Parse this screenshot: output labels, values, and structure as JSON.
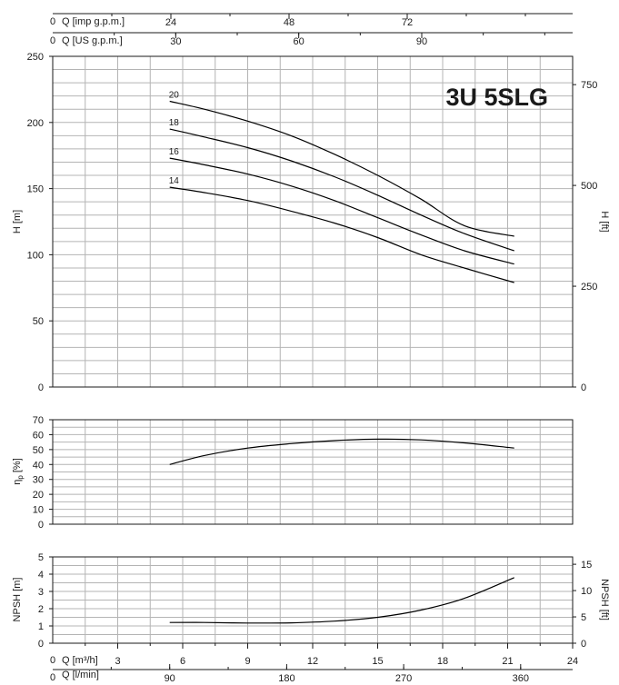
{
  "chart_data": [
    {
      "type": "line",
      "title": "3U 5SLG",
      "ylabel": "H [m]",
      "y2label": "H [ft]",
      "ylim": [
        0,
        250
      ],
      "yticks": [
        0,
        50,
        100,
        150,
        200,
        250
      ],
      "y2lim": [
        0,
        820.2
      ],
      "y2ticks": [
        0,
        250,
        500,
        750
      ],
      "xlim": [
        0,
        24
      ],
      "grid": true,
      "series": [
        {
          "name": "20",
          "x": [
            5.4,
            7,
            9,
            11,
            13,
            15,
            17,
            19,
            21.3
          ],
          "y": [
            216,
            210,
            201,
            190,
            176,
            160,
            142,
            122,
            114
          ]
        },
        {
          "name": "18",
          "x": [
            5.4,
            7,
            9,
            11,
            13,
            15,
            17,
            19,
            21.3
          ],
          "y": [
            195,
            189,
            181,
            171,
            159,
            145,
            130,
            116,
            103
          ]
        },
        {
          "name": "16",
          "x": [
            5.4,
            7,
            9,
            11,
            13,
            15,
            17,
            19,
            21.3
          ],
          "y": [
            173,
            168,
            161,
            152,
            141,
            128,
            115,
            103,
            93
          ]
        },
        {
          "name": "14",
          "x": [
            5.4,
            7,
            9,
            11,
            13,
            15,
            17,
            19,
            21.3
          ],
          "y": [
            151,
            147,
            141,
            133,
            124,
            113,
            100,
            90,
            79
          ]
        }
      ]
    },
    {
      "type": "line",
      "ylabel": "η",
      "ylabel_sub": "p",
      "ylabel_unit": " [%]",
      "ylim": [
        0,
        70
      ],
      "yticks": [
        0,
        10,
        20,
        30,
        40,
        50,
        60,
        70
      ],
      "xlim": [
        0,
        24
      ],
      "grid": true,
      "series": [
        {
          "x": [
            5.4,
            7,
            9,
            11,
            13,
            15,
            17,
            19,
            21.3
          ],
          "y": [
            40,
            46,
            51,
            54,
            56,
            57,
            56.5,
            54.5,
            51
          ]
        }
      ]
    },
    {
      "type": "line",
      "ylabel": "NPSH [m]",
      "y2label": "NPSH [ft]",
      "ylim": [
        0,
        5
      ],
      "yticks": [
        0,
        1,
        2,
        3,
        4,
        5
      ],
      "y2lim": [
        0,
        16.4
      ],
      "y2ticks": [
        0,
        5,
        10,
        15
      ],
      "xlim": [
        0,
        24
      ],
      "grid": true,
      "series": [
        {
          "x": [
            5.4,
            7,
            9,
            11,
            13,
            15,
            17,
            19,
            21.3
          ],
          "y": [
            1.2,
            1.2,
            1.17,
            1.18,
            1.28,
            1.5,
            1.92,
            2.6,
            3.8
          ]
        }
      ]
    }
  ],
  "x_axes": {
    "imp": {
      "label": "Q [imp g.p.m.]",
      "zero": "0",
      "max": 105.6,
      "ticks": [
        24,
        48,
        72
      ]
    },
    "us": {
      "label": "Q [US g.p.m.]",
      "zero": "0",
      "max": 126.8,
      "ticks": [
        30,
        60,
        90
      ]
    },
    "m3h": {
      "label": "Q [m³/h]",
      "zero": "0",
      "max": 24,
      "ticks": [
        3,
        6,
        9,
        12,
        15,
        18,
        21,
        24
      ]
    },
    "lmin": {
      "label": "Q [l/min]",
      "zero": "0",
      "max": 400,
      "ticks": [
        90,
        180,
        270,
        360
      ]
    }
  }
}
